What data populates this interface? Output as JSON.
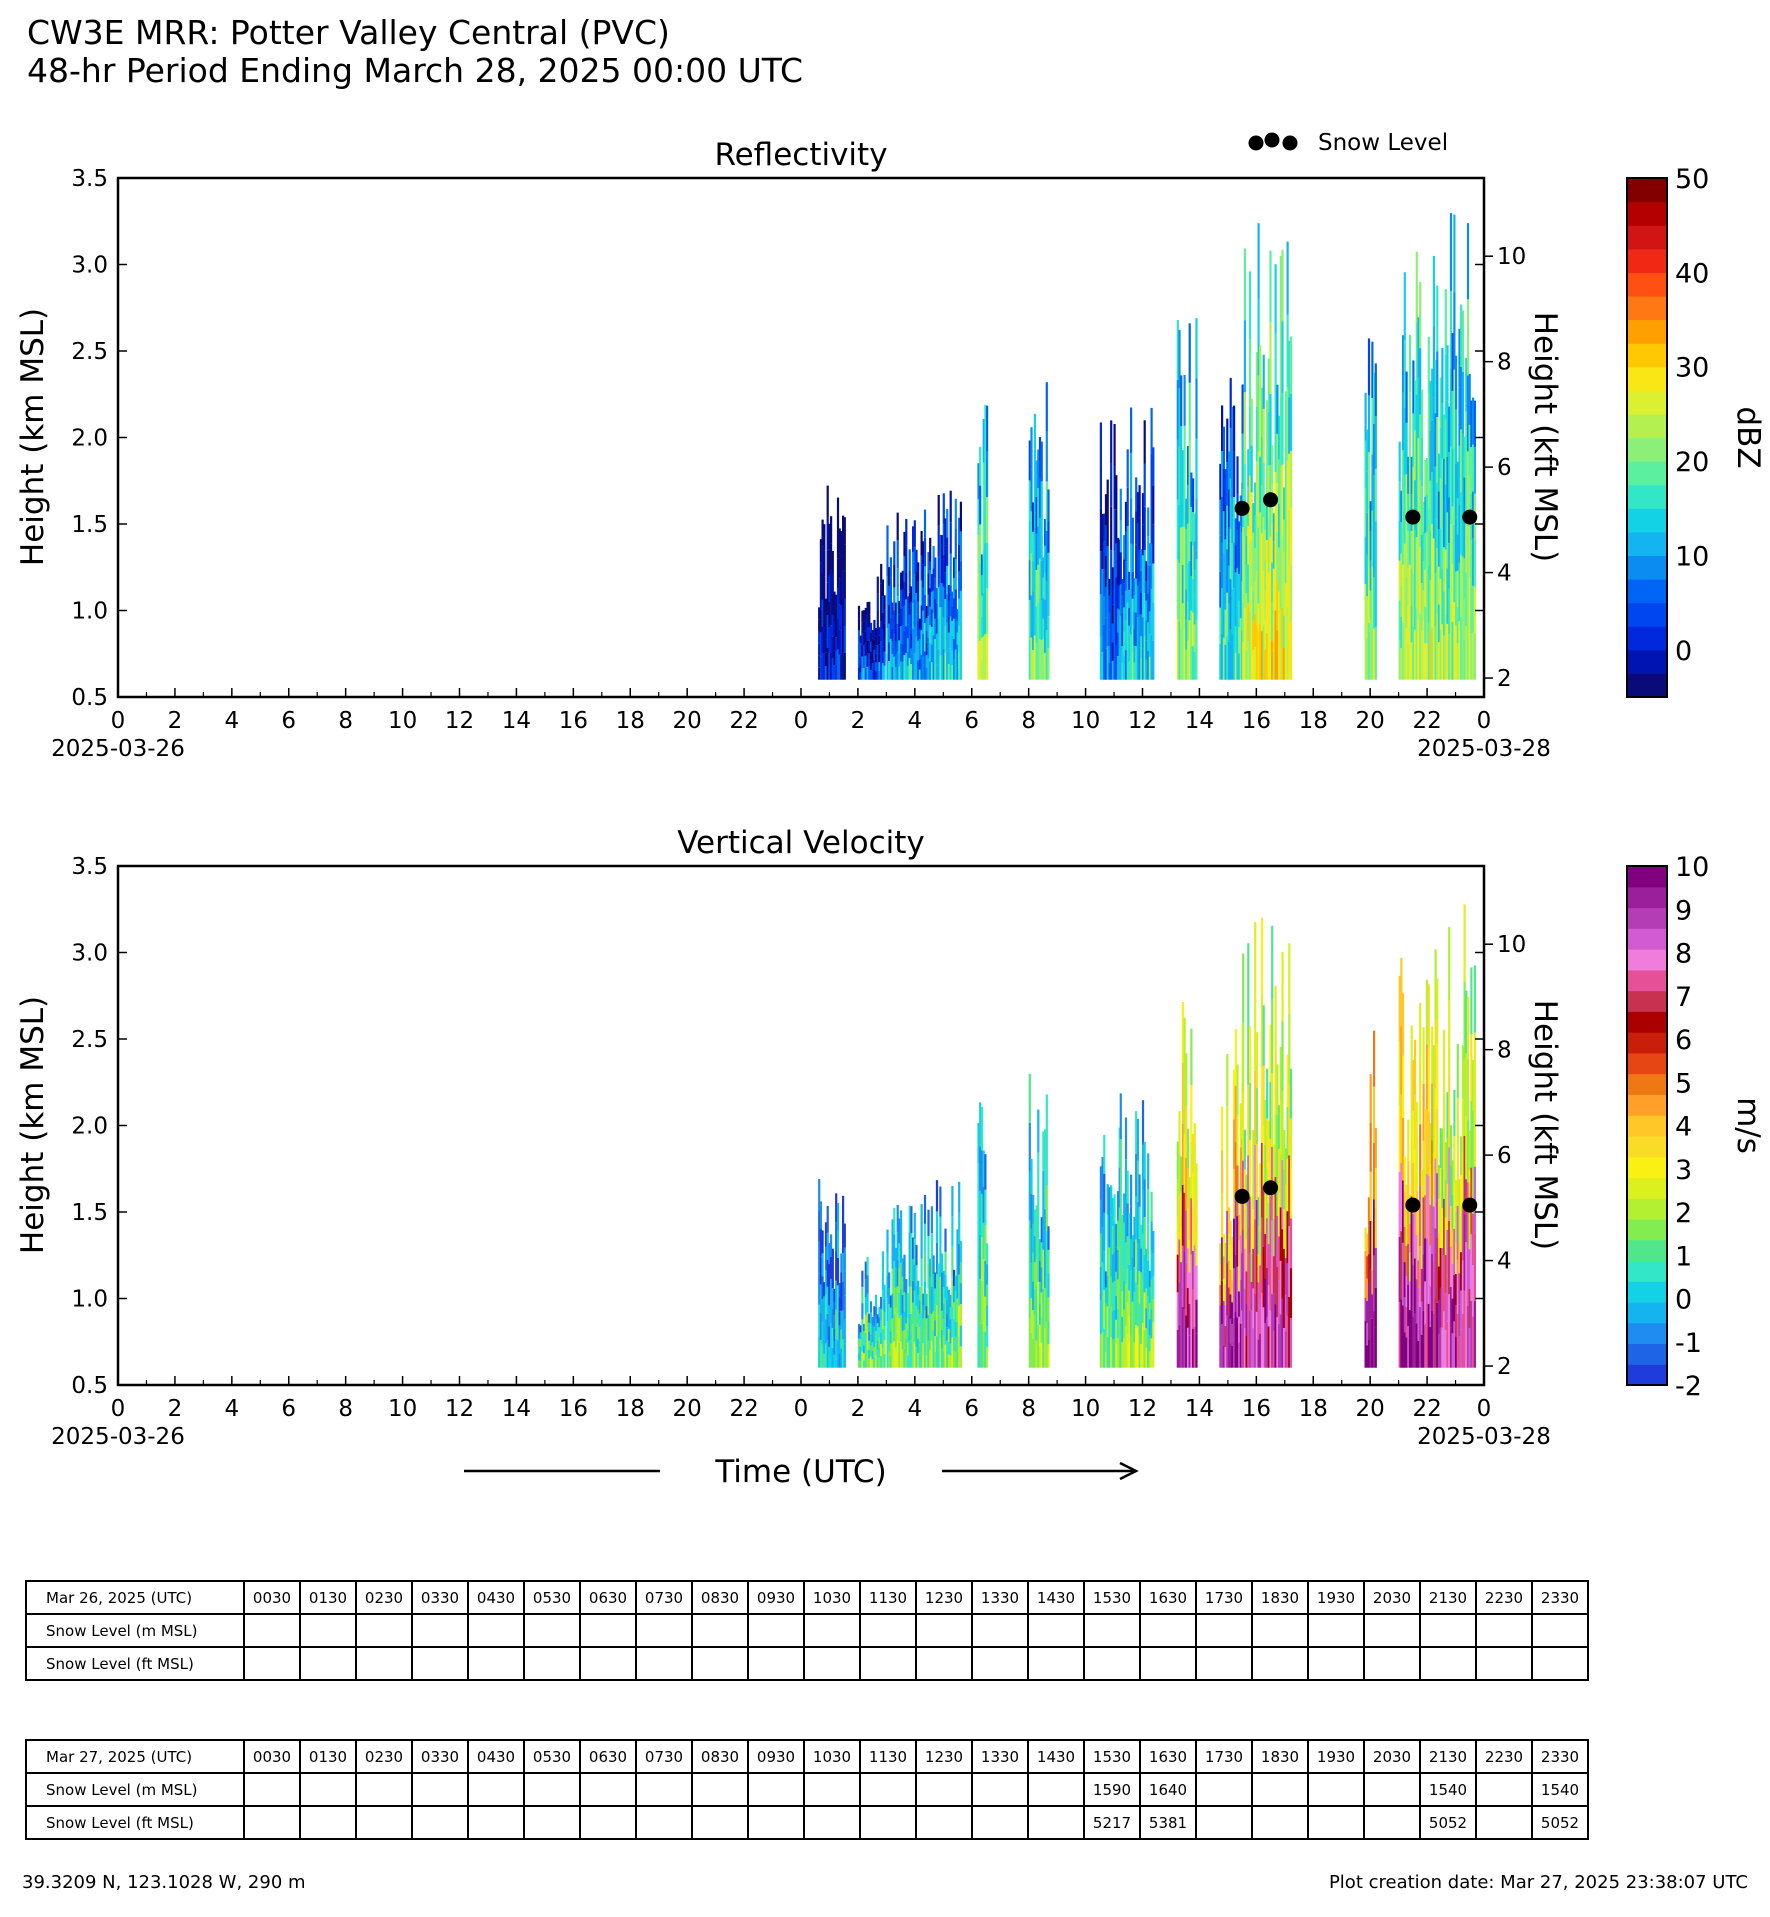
{
  "header": {
    "title_line1": "CW3E MRR: Potter Valley Central (PVC)",
    "title_line2": "48-hr Period Ending March 28, 2025 00:00 UTC"
  },
  "legend": {
    "snow_level_label": "Snow Level"
  },
  "x_axis_label": "Time (UTC)",
  "chart_data": [
    {
      "type": "heatmap",
      "title": "Reflectivity",
      "ylabel": "Height (km MSL)",
      "ylabel_right": "Height (kft MSL)",
      "xlim_hours": [
        0,
        48
      ],
      "ylim": [
        0.5,
        3.5
      ],
      "y_ticks": [
        "0.5",
        "1.0",
        "1.5",
        "2.0",
        "2.5",
        "3.0",
        "3.5"
      ],
      "y_ticks_right": [
        "2",
        "4",
        "6",
        "8",
        "10"
      ],
      "x_ticks": [
        "0",
        "2",
        "4",
        "6",
        "8",
        "10",
        "12",
        "14",
        "16",
        "18",
        "20",
        "22",
        "0",
        "2",
        "4",
        "6",
        "8",
        "10",
        "12",
        "14",
        "16",
        "18",
        "20",
        "22",
        "0"
      ],
      "date_left": "2025-03-26",
      "date_right": "2025-03-28",
      "colorbar": {
        "label": "dBZ",
        "min": -5,
        "max": 50,
        "ticks": [
          "50",
          "40",
          "30",
          "20",
          "10",
          "0"
        ],
        "colors": [
          "#0a0a78",
          "#0014b4",
          "#0028dc",
          "#0046f0",
          "#0064f5",
          "#0a8cf0",
          "#14b4f0",
          "#14d2e6",
          "#32e6c8",
          "#5af0a0",
          "#8cf078",
          "#b4f050",
          "#dcf032",
          "#fae614",
          "#ffc800",
          "#ffa000",
          "#ff7814",
          "#ff5014",
          "#f02814",
          "#d21414",
          "#b40000",
          "#820000"
        ]
      },
      "snow_level_km": [
        {
          "hour": 39.5,
          "km": 1.59
        },
        {
          "hour": 40.5,
          "km": 1.64
        },
        {
          "hour": 45.5,
          "km": 1.54
        },
        {
          "hour": 47.5,
          "km": 1.54
        }
      ],
      "echo_periods": [
        {
          "start": 24.6,
          "end": 25.5,
          "top": 1.75,
          "level": 0.12
        },
        {
          "start": 26.0,
          "end": 26.9,
          "top": 1.3,
          "level": 0.2
        },
        {
          "start": 27.0,
          "end": 28.5,
          "top": 1.6,
          "level": 0.3
        },
        {
          "start": 28.5,
          "end": 29.6,
          "top": 1.7,
          "level": 0.35
        },
        {
          "start": 30.2,
          "end": 30.5,
          "top": 2.2,
          "level": 0.5
        },
        {
          "start": 32.0,
          "end": 32.7,
          "top": 2.4,
          "level": 0.45
        },
        {
          "start": 34.5,
          "end": 35.2,
          "top": 2.1,
          "level": 0.25
        },
        {
          "start": 35.2,
          "end": 36.4,
          "top": 2.2,
          "level": 0.35
        },
        {
          "start": 37.2,
          "end": 37.9,
          "top": 2.8,
          "level": 0.5
        },
        {
          "start": 38.7,
          "end": 39.5,
          "top": 2.6,
          "level": 0.4
        },
        {
          "start": 39.5,
          "end": 41.2,
          "top": 3.3,
          "level": 0.6
        },
        {
          "start": 43.8,
          "end": 44.2,
          "top": 2.6,
          "level": 0.5
        },
        {
          "start": 45.0,
          "end": 46.2,
          "top": 3.1,
          "level": 0.55
        },
        {
          "start": 46.2,
          "end": 47.7,
          "top": 3.3,
          "level": 0.5
        }
      ]
    },
    {
      "type": "heatmap",
      "title": "Vertical Velocity",
      "ylabel": "Height (km MSL)",
      "ylabel_right": "Height (kft MSL)",
      "xlim_hours": [
        0,
        48
      ],
      "ylim": [
        0.5,
        3.5
      ],
      "y_ticks": [
        "0.5",
        "1.0",
        "1.5",
        "2.0",
        "2.5",
        "3.0",
        "3.5"
      ],
      "y_ticks_right": [
        "2",
        "4",
        "6",
        "8",
        "10"
      ],
      "x_ticks": [
        "0",
        "2",
        "4",
        "6",
        "8",
        "10",
        "12",
        "14",
        "16",
        "18",
        "20",
        "22",
        "0",
        "2",
        "4",
        "6",
        "8",
        "10",
        "12",
        "14",
        "16",
        "18",
        "20",
        "22",
        "0"
      ],
      "date_left": "2025-03-26",
      "date_right": "2025-03-28",
      "colorbar": {
        "label": "m/s",
        "min": -2,
        "max": 10,
        "ticks": [
          "10",
          "9",
          "8",
          "7",
          "6",
          "5",
          "4",
          "3",
          "2",
          "1",
          "0",
          "-1",
          "-2"
        ],
        "colors": [
          "#1e3cdc",
          "#1e64e6",
          "#1e8cf0",
          "#14b4f0",
          "#14d2e6",
          "#32e6c8",
          "#50e68c",
          "#82ec50",
          "#b4f032",
          "#dcf01e",
          "#faf014",
          "#fadc28",
          "#ffc828",
          "#ffa028",
          "#f07814",
          "#e64614",
          "#c81e0a",
          "#aa0000",
          "#c83250",
          "#e65096",
          "#f07ddc",
          "#d25ad2",
          "#b43cb4",
          "#9b1e9b",
          "#800080"
        ]
      },
      "snow_level_km": [
        {
          "hour": 39.5,
          "km": 1.59
        },
        {
          "hour": 40.5,
          "km": 1.64
        },
        {
          "hour": 45.5,
          "km": 1.54
        },
        {
          "hour": 47.5,
          "km": 1.54
        }
      ],
      "echo_periods": [
        {
          "start": 24.6,
          "end": 25.5,
          "top": 1.75,
          "level": 0.2
        },
        {
          "start": 26.0,
          "end": 26.9,
          "top": 1.3,
          "level": 0.3
        },
        {
          "start": 27.0,
          "end": 28.5,
          "top": 1.6,
          "level": 0.3
        },
        {
          "start": 28.5,
          "end": 29.6,
          "top": 1.7,
          "level": 0.3
        },
        {
          "start": 30.2,
          "end": 30.5,
          "top": 2.2,
          "level": 0.3
        },
        {
          "start": 32.0,
          "end": 32.7,
          "top": 2.4,
          "level": 0.32
        },
        {
          "start": 34.5,
          "end": 35.2,
          "top": 2.1,
          "level": 0.3
        },
        {
          "start": 35.2,
          "end": 36.4,
          "top": 2.2,
          "level": 0.32
        },
        {
          "start": 37.2,
          "end": 37.9,
          "top": 2.8,
          "level": 0.55
        },
        {
          "start": 38.7,
          "end": 39.5,
          "top": 2.6,
          "level": 0.6
        },
        {
          "start": 39.5,
          "end": 41.2,
          "top": 3.3,
          "level": 0.5
        },
        {
          "start": 43.8,
          "end": 44.2,
          "top": 2.6,
          "level": 0.65
        },
        {
          "start": 45.0,
          "end": 46.2,
          "top": 3.1,
          "level": 0.6
        },
        {
          "start": 46.2,
          "end": 47.7,
          "top": 3.3,
          "level": 0.5
        }
      ]
    },
    {
      "type": "table",
      "header_label": "Mar 26, 2025 (UTC)",
      "times": [
        "0030",
        "0130",
        "0230",
        "0330",
        "0430",
        "0530",
        "0630",
        "0730",
        "0830",
        "0930",
        "1030",
        "1130",
        "1230",
        "1330",
        "1430",
        "1530",
        "1630",
        "1730",
        "1830",
        "1930",
        "2030",
        "2130",
        "2230",
        "2330"
      ],
      "rows": [
        {
          "label": "Snow Level (m MSL)",
          "values": [
            "",
            "",
            "",
            "",
            "",
            "",
            "",
            "",
            "",
            "",
            "",
            "",
            "",
            "",
            "",
            "",
            "",
            "",
            "",
            "",
            "",
            "",
            "",
            ""
          ]
        },
        {
          "label": "Snow Level (ft MSL)",
          "values": [
            "",
            "",
            "",
            "",
            "",
            "",
            "",
            "",
            "",
            "",
            "",
            "",
            "",
            "",
            "",
            "",
            "",
            "",
            "",
            "",
            "",
            "",
            "",
            ""
          ]
        }
      ]
    },
    {
      "type": "table",
      "header_label": "Mar 27, 2025 (UTC)",
      "times": [
        "0030",
        "0130",
        "0230",
        "0330",
        "0430",
        "0530",
        "0630",
        "0730",
        "0830",
        "0930",
        "1030",
        "1130",
        "1230",
        "1330",
        "1430",
        "1530",
        "1630",
        "1730",
        "1830",
        "1930",
        "2030",
        "2130",
        "2230",
        "2330"
      ],
      "rows": [
        {
          "label": "Snow Level (m MSL)",
          "values": [
            "",
            "",
            "",
            "",
            "",
            "",
            "",
            "",
            "",
            "",
            "",
            "",
            "",
            "",
            "",
            "1590",
            "1640",
            "",
            "",
            "",
            "",
            "1540",
            "",
            "1540"
          ]
        },
        {
          "label": "Snow Level (ft MSL)",
          "values": [
            "",
            "",
            "",
            "",
            "",
            "",
            "",
            "",
            "",
            "",
            "",
            "",
            "",
            "",
            "",
            "5217",
            "5381",
            "",
            "",
            "",
            "",
            "5052",
            "",
            "5052"
          ]
        }
      ]
    }
  ],
  "footer": {
    "location": "39.3209 N, 123.1028 W, 290 m",
    "creation_date": "Plot creation date: Mar 27, 2025 23:38:07 UTC"
  }
}
